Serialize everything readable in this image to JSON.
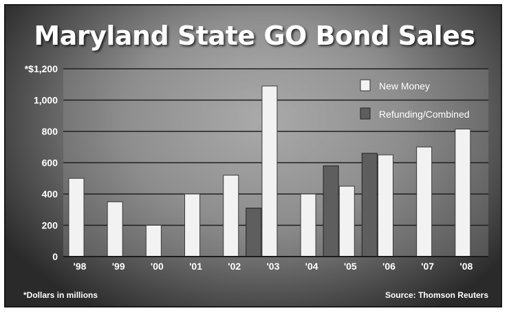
{
  "chart_data": {
    "type": "bar",
    "title": "Maryland State GO Bond Sales",
    "categories": [
      "'98",
      "'99",
      "'00",
      "'01",
      "'02",
      "'03",
      "'04",
      "'05",
      "'06",
      "'07",
      "'08"
    ],
    "series": [
      {
        "name": "New Money",
        "color": "#f2f2f2",
        "values": [
          500,
          350,
          200,
          400,
          520,
          1090,
          400,
          450,
          650,
          700,
          815
        ]
      },
      {
        "name": "Refunding/Combined",
        "color": "#5e5e5e",
        "values": [
          null,
          null,
          null,
          null,
          310,
          null,
          580,
          660,
          null,
          null,
          null
        ]
      }
    ],
    "ylim": [
      0,
      1200
    ],
    "yticks": [
      0,
      200,
      400,
      600,
      800,
      1000,
      1200
    ],
    "ytick_labels": [
      "0",
      "200",
      "400",
      "600",
      "800",
      "1,000",
      "*$1,200"
    ],
    "grid": true,
    "legend_position": "top-right",
    "footnote": "*Dollars in millions",
    "source": "Source: Thomson Reuters"
  }
}
